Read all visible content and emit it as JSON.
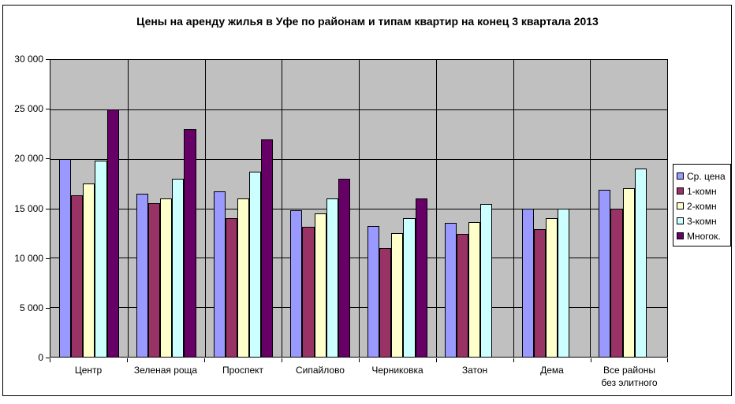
{
  "title": "Цены на аренду жилья в Уфе по районам и типам квартир на конец 3 квартала 2013",
  "chart_data": {
    "type": "bar",
    "title": "Цены на аренду жилья в Уфе по районам и типам квартир на конец 3 квартала 2013",
    "categories": [
      "Центр",
      "Зеленая роща",
      "Проспект",
      "Сипайлово",
      "Черниковка",
      "Затон",
      "Дема",
      "Все районы\nбез элитного"
    ],
    "series": [
      {
        "name": "Ср. цена",
        "color": "#9999FF",
        "values": [
          20000,
          16500,
          16700,
          14800,
          13200,
          13500,
          15000,
          16900
        ]
      },
      {
        "name": "1-комн",
        "color": "#993366",
        "values": [
          16300,
          15500,
          14000,
          13100,
          11000,
          12400,
          12900,
          15000
        ]
      },
      {
        "name": "2-комн",
        "color": "#FFFFCC",
        "values": [
          17500,
          16000,
          16000,
          14500,
          12500,
          13600,
          14000,
          17000
        ]
      },
      {
        "name": "3-комн",
        "color": "#CCFFFF",
        "values": [
          19800,
          18000,
          18700,
          16000,
          14000,
          15400,
          15000,
          19000
        ]
      },
      {
        "name": "Многок.",
        "color": "#660066",
        "values": [
          25000,
          23000,
          22000,
          18000,
          16000,
          null,
          null,
          null
        ]
      }
    ],
    "xlabel": "",
    "ylabel": "",
    "ylim": [
      0,
      30000
    ],
    "ytick_step": 5000,
    "ytick_labels": [
      "0",
      "5 000",
      "10 000",
      "15 000",
      "20 000",
      "25 000",
      "30 000"
    ],
    "grid": true,
    "legend_position": "right",
    "plot_background": "#C0C0C0",
    "gridline_color": "#000000"
  }
}
